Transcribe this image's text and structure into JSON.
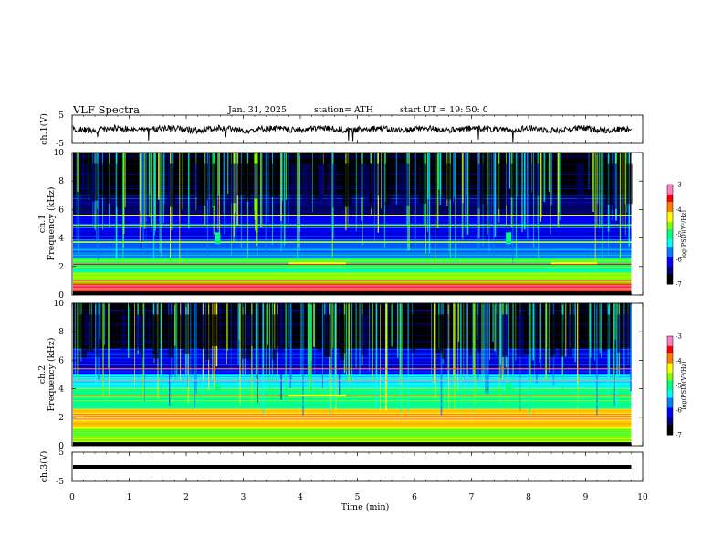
{
  "header": {
    "title": "VLF  Spectra",
    "date": "Jan. 31, 2025",
    "station": "station= ATH",
    "start": "start  UT  =   19: 50: 0"
  },
  "colors": {
    "waveform": "#000000",
    "background": "#ffffff",
    "colormap": [
      "#000000",
      "#00007a",
      "#0000ff",
      "#0080ff",
      "#00ffff",
      "#00ff80",
      "#80ff00",
      "#ffff00",
      "#ff8000",
      "#ff0000",
      "#ff80c0",
      "#ffffff"
    ]
  },
  "chart_data": [
    {
      "type": "line",
      "name": "ch1-waveform",
      "ylabel": "ch.1(V)",
      "yticks": [
        "5",
        "-5"
      ],
      "ylim": [
        -5,
        5
      ],
      "xlim": [
        0,
        10
      ],
      "data_end_min": 9.8,
      "baseline_v": 0.0,
      "typical_amplitude_v": 1.0
    },
    {
      "type": "heatmap",
      "name": "ch1-spectrogram",
      "ylabel_line1": "ch.1",
      "ylabel_line2": "Frequency  (kHz)",
      "yticks": [
        "10",
        "8",
        "6",
        "4",
        "2",
        "0"
      ],
      "ylim_khz": [
        0,
        10
      ],
      "xlim_min": [
        0,
        10
      ],
      "data_end_min": 9.8,
      "colorbar": {
        "label": "log(PSD)(V²/Hz)",
        "ticks": [
          "-3",
          "-4",
          "-5",
          "-6",
          "-7"
        ],
        "range": [
          -7,
          -3
        ]
      },
      "bands": [
        {
          "from_khz": 0.0,
          "to_khz": 0.8,
          "level": -3.4
        },
        {
          "from_khz": 0.8,
          "to_khz": 1.6,
          "level": -4.6
        },
        {
          "from_khz": 1.6,
          "to_khz": 2.6,
          "level": -4.9
        },
        {
          "from_khz": 2.6,
          "to_khz": 3.8,
          "level": -5.7
        },
        {
          "from_khz": 3.8,
          "to_khz": 5.6,
          "level": -6.1
        },
        {
          "from_khz": 5.6,
          "to_khz": 7.0,
          "level": -6.5
        },
        {
          "from_khz": 7.0,
          "to_khz": 10.0,
          "level": -6.9
        }
      ],
      "burst_times_min": [
        2.55,
        7.65
      ]
    },
    {
      "type": "heatmap",
      "name": "ch2-spectrogram",
      "ylabel_line1": "ch.2",
      "ylabel_line2": "Frequency  (kHz)",
      "yticks": [
        "10",
        "8",
        "6",
        "4",
        "2",
        "0"
      ],
      "ylim_khz": [
        0,
        10
      ],
      "xlim_min": [
        0,
        10
      ],
      "data_end_min": 9.8,
      "colorbar": {
        "label": "log(PSD)(V²/Hz)",
        "ticks": [
          "-3",
          "-4",
          "-5",
          "-6",
          "-7"
        ],
        "range": [
          -7,
          -3
        ]
      },
      "bands": [
        {
          "from_khz": 0.0,
          "to_khz": 1.2,
          "level": -4.6
        },
        {
          "from_khz": 1.2,
          "to_khz": 2.6,
          "level": -4.2
        },
        {
          "from_khz": 2.6,
          "to_khz": 4.0,
          "level": -4.9
        },
        {
          "from_khz": 4.0,
          "to_khz": 5.0,
          "level": -5.4
        },
        {
          "from_khz": 5.0,
          "to_khz": 6.8,
          "level": -6.1
        },
        {
          "from_khz": 6.8,
          "to_khz": 10.0,
          "level": -6.9
        }
      ],
      "burst_times_min": [
        2.55,
        7.65
      ]
    },
    {
      "type": "line",
      "name": "ch3-waveform",
      "ylabel": "ch.3(V)",
      "yticks": [
        "5",
        "-5"
      ],
      "ylim": [
        -5,
        5
      ],
      "xlim": [
        0,
        10
      ],
      "data_end_min": 9.8,
      "baseline_v": 0.0,
      "typical_amplitude_v": 0.1
    }
  ],
  "xaxis": {
    "label": "Time  (min)",
    "ticks": [
      "0",
      "1",
      "2",
      "3",
      "4",
      "5",
      "6",
      "7",
      "8",
      "9",
      "10"
    ],
    "range": [
      0,
      10
    ]
  }
}
